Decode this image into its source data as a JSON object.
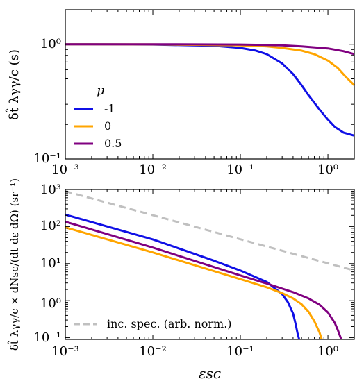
{
  "chart_data": [
    {
      "type": "line",
      "xscale": "log",
      "yscale": "log",
      "xlim": [
        0.001,
        2
      ],
      "ylim": [
        0.1,
        2
      ],
      "xlabel": "",
      "ylabel": "δt̂ λγγ/c (s)",
      "xtick_labels": [
        "10⁻³",
        "10⁻²",
        "10⁻¹",
        "10⁰"
      ],
      "xtick_values": [
        0.001,
        0.01,
        0.1,
        1
      ],
      "ytick_labels": [
        "10⁻¹",
        "10⁰"
      ],
      "ytick_values": [
        0.1,
        1
      ],
      "legend": {
        "title": "μ",
        "position": "center-left"
      },
      "series": [
        {
          "name": "-1",
          "color": "#1010e6",
          "x": [
            0.001,
            0.01,
            0.05,
            0.1,
            0.15,
            0.2,
            0.3,
            0.4,
            0.5,
            0.6,
            0.8,
            1.0,
            1.2,
            1.5,
            2.0
          ],
          "y": [
            1.0,
            0.995,
            0.97,
            0.93,
            0.88,
            0.82,
            0.68,
            0.55,
            0.44,
            0.36,
            0.27,
            0.22,
            0.19,
            0.17,
            0.16
          ]
        },
        {
          "name": "0",
          "color": "#ffa500",
          "x": [
            0.001,
            0.01,
            0.1,
            0.2,
            0.3,
            0.5,
            0.7,
            1.0,
            1.3,
            1.6,
            2.0
          ],
          "y": [
            1.0,
            0.998,
            0.98,
            0.96,
            0.93,
            0.88,
            0.82,
            0.72,
            0.62,
            0.52,
            0.44
          ]
        },
        {
          "name": "0.5",
          "color": "#800080",
          "x": [
            0.001,
            0.01,
            0.1,
            0.3,
            0.5,
            1.0,
            1.5,
            2.0
          ],
          "y": [
            1.0,
            1.0,
            0.995,
            0.98,
            0.96,
            0.92,
            0.87,
            0.82
          ]
        }
      ]
    },
    {
      "type": "line",
      "xscale": "log",
      "yscale": "log",
      "xlim": [
        0.001,
        2
      ],
      "ylim": [
        0.09,
        1000
      ],
      "xlabel": "εsc",
      "ylabel": "δt̂ λγγ/c × dNsc/(dt dε dΩ) (sr⁻¹)",
      "xtick_labels": [
        "10⁻³",
        "10⁻²",
        "10⁻¹",
        "10⁰"
      ],
      "xtick_values": [
        0.001,
        0.01,
        0.1,
        1
      ],
      "ytick_labels": [
        "10⁻¹",
        "10⁰",
        "10¹",
        "10²",
        "10³"
      ],
      "ytick_values": [
        0.1,
        1,
        10,
        100,
        1000
      ],
      "legend": {
        "position": "lower-left"
      },
      "series": [
        {
          "name": "",
          "color": "#1010e6",
          "x": [
            0.001,
            0.01,
            0.05,
            0.1,
            0.2,
            0.3,
            0.35,
            0.4,
            0.43,
            0.45,
            0.47
          ],
          "y": [
            210,
            45,
            12,
            6.5,
            3.2,
            1.5,
            0.9,
            0.45,
            0.22,
            0.13,
            0.09
          ]
        },
        {
          "name": "",
          "color": "#ffa500",
          "x": [
            0.001,
            0.01,
            0.1,
            0.2,
            0.3,
            0.4,
            0.5,
            0.6,
            0.7,
            0.8,
            0.85
          ],
          "y": [
            95,
            20,
            3.8,
            2.3,
            1.6,
            1.15,
            0.8,
            0.5,
            0.28,
            0.14,
            0.09
          ]
        },
        {
          "name": "",
          "color": "#800080",
          "x": [
            0.001,
            0.01,
            0.1,
            0.2,
            0.4,
            0.6,
            0.8,
            1.0,
            1.2,
            1.3,
            1.42
          ],
          "y": [
            135,
            27,
            4.8,
            2.9,
            1.7,
            1.15,
            0.78,
            0.48,
            0.25,
            0.16,
            0.09
          ]
        },
        {
          "name": "inc. spec. (arb. norm.)",
          "color": "#c0c0c0",
          "dashed": true,
          "x": [
            0.001,
            2
          ],
          "y": [
            900,
            6.5
          ]
        }
      ]
    }
  ]
}
